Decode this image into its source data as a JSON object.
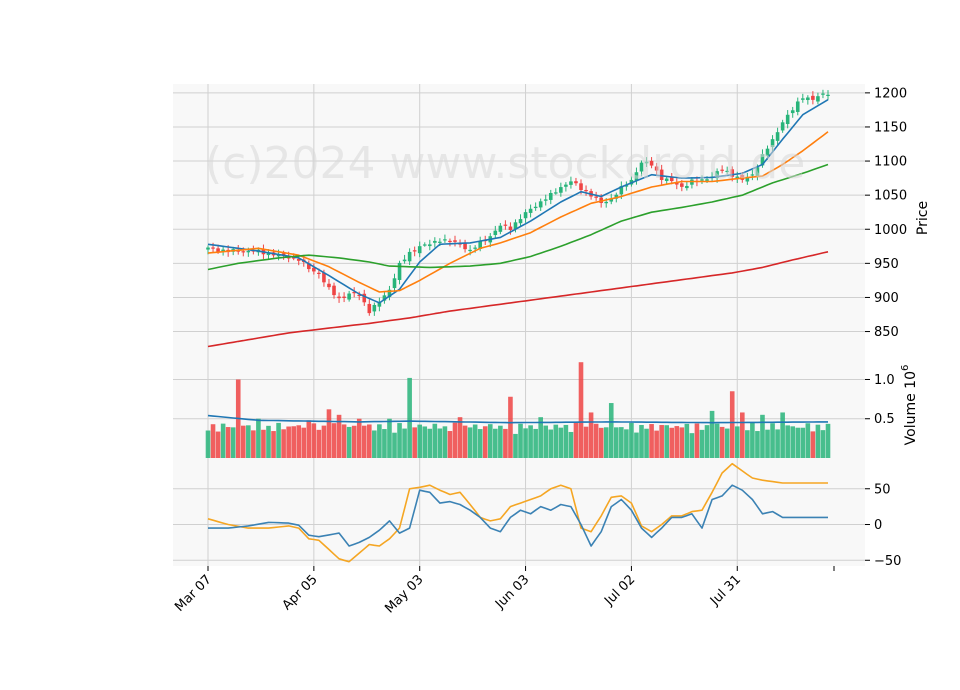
{
  "watermark": "(c)2024 www.stockdroid.de",
  "colors": {
    "panel_bg": "#f8f8f8",
    "grid": "#d0d0d0",
    "up": "#28b47a",
    "down": "#ef4444",
    "ma_short": "#1f77b4",
    "ma_mid": "#ff7f0e",
    "ma_long": "#2ca02c",
    "ma_200": "#d62728",
    "vol_ma": "#1f77b4",
    "osc_a": "#3b82b4",
    "osc_b": "#f5a623"
  },
  "chart_data": {
    "type": "candlestick",
    "x_ticks": [
      "Mar 07",
      "Apr 05",
      "May 03",
      "Jun 03",
      "Jul 02",
      "Jul 31"
    ],
    "price_panel": {
      "ylabel": "Price",
      "y_ticks": [
        850,
        900,
        950,
        1000,
        1050,
        1100,
        1150,
        1200
      ],
      "ylim": [
        820,
        1213
      ],
      "close_anchors": [
        [
          0,
          972
        ],
        [
          4,
          968
        ],
        [
          9,
          968
        ],
        [
          14,
          962
        ],
        [
          18,
          956
        ],
        [
          20,
          942
        ],
        [
          22,
          935
        ],
        [
          24,
          912
        ],
        [
          26,
          898
        ],
        [
          28,
          905
        ],
        [
          30,
          904
        ],
        [
          32,
          880
        ],
        [
          34,
          893
        ],
        [
          36,
          912
        ],
        [
          38,
          948
        ],
        [
          40,
          965
        ],
        [
          42,
          975
        ],
        [
          44,
          978
        ],
        [
          46,
          985
        ],
        [
          48,
          982
        ],
        [
          50,
          978
        ],
        [
          52,
          968
        ],
        [
          54,
          980
        ],
        [
          56,
          990
        ],
        [
          58,
          1005
        ],
        [
          60,
          1002
        ],
        [
          62,
          1016
        ],
        [
          64,
          1030
        ],
        [
          66,
          1040
        ],
        [
          68,
          1050
        ],
        [
          70,
          1062
        ],
        [
          72,
          1070
        ],
        [
          74,
          1060
        ],
        [
          76,
          1050
        ],
        [
          78,
          1038
        ],
        [
          80,
          1045
        ],
        [
          82,
          1060
        ],
        [
          84,
          1072
        ],
        [
          86,
          1098
        ],
        [
          88,
          1095
        ],
        [
          90,
          1075
        ],
        [
          92,
          1070
        ],
        [
          94,
          1062
        ],
        [
          96,
          1070
        ],
        [
          98,
          1072
        ],
        [
          100,
          1078
        ],
        [
          102,
          1088
        ],
        [
          104,
          1080
        ],
        [
          106,
          1072
        ],
        [
          108,
          1080
        ],
        [
          110,
          1108
        ],
        [
          112,
          1130
        ],
        [
          114,
          1158
        ],
        [
          116,
          1175
        ],
        [
          118,
          1195
        ],
        [
          120,
          1190
        ],
        [
          122,
          1198
        ],
        [
          123,
          1200
        ]
      ],
      "ma_series": [
        {
          "name": "",
          "color": "ma_short",
          "anchors": [
            [
              0,
              978
            ],
            [
              10,
              968
            ],
            [
              18,
              958
            ],
            [
              24,
              932
            ],
            [
              30,
              905
            ],
            [
              34,
              892
            ],
            [
              38,
              912
            ],
            [
              42,
              952
            ],
            [
              46,
              978
            ],
            [
              52,
              980
            ],
            [
              58,
              988
            ],
            [
              64,
              1012
            ],
            [
              70,
              1040
            ],
            [
              74,
              1055
            ],
            [
              78,
              1048
            ],
            [
              82,
              1062
            ],
            [
              88,
              1080
            ],
            [
              94,
              1075
            ],
            [
              100,
              1076
            ],
            [
              106,
              1082
            ],
            [
              110,
              1095
            ],
            [
              114,
              1132
            ],
            [
              118,
              1168
            ],
            [
              123,
              1190
            ]
          ]
        },
        {
          "name": "",
          "color": "ma_mid",
          "anchors": [
            [
              0,
              965
            ],
            [
              10,
              972
            ],
            [
              18,
              962
            ],
            [
              24,
              945
            ],
            [
              30,
              922
            ],
            [
              34,
              908
            ],
            [
              38,
              910
            ],
            [
              42,
              925
            ],
            [
              48,
              950
            ],
            [
              54,
              972
            ],
            [
              58,
              980
            ],
            [
              64,
              995
            ],
            [
              70,
              1018
            ],
            [
              76,
              1038
            ],
            [
              82,
              1048
            ],
            [
              88,
              1062
            ],
            [
              94,
              1070
            ],
            [
              100,
              1070
            ],
            [
              106,
              1075
            ],
            [
              110,
              1078
            ],
            [
              114,
              1095
            ],
            [
              118,
              1115
            ],
            [
              123,
              1143
            ]
          ]
        },
        {
          "name": "",
          "color": "ma_long",
          "anchors": [
            [
              0,
              941
            ],
            [
              6,
              950
            ],
            [
              14,
              958
            ],
            [
              20,
              962
            ],
            [
              26,
              958
            ],
            [
              32,
              952
            ],
            [
              36,
              946
            ],
            [
              44,
              944
            ],
            [
              52,
              946
            ],
            [
              58,
              950
            ],
            [
              64,
              960
            ],
            [
              70,
              975
            ],
            [
              76,
              992
            ],
            [
              82,
              1012
            ],
            [
              88,
              1025
            ],
            [
              94,
              1032
            ],
            [
              100,
              1040
            ],
            [
              106,
              1050
            ],
            [
              112,
              1068
            ],
            [
              118,
              1082
            ],
            [
              123,
              1095
            ]
          ]
        },
        {
          "name": "",
          "color": "ma_200",
          "anchors": [
            [
              0,
              828
            ],
            [
              8,
              838
            ],
            [
              16,
              848
            ],
            [
              24,
              855
            ],
            [
              32,
              862
            ],
            [
              40,
              870
            ],
            [
              48,
              880
            ],
            [
              56,
              888
            ],
            [
              64,
              896
            ],
            [
              72,
              904
            ],
            [
              80,
              912
            ],
            [
              88,
              920
            ],
            [
              96,
              928
            ],
            [
              104,
              936
            ],
            [
              110,
              944
            ],
            [
              116,
              955
            ],
            [
              123,
              967
            ]
          ]
        }
      ]
    },
    "volume_panel": {
      "ylabel": "Volume  10^6",
      "y_ticks": [
        0.5,
        1.0
      ],
      "ylim": [
        0,
        1.35
      ],
      "volume_ma": [
        [
          0,
          0.54
        ],
        [
          10,
          0.48
        ],
        [
          30,
          0.46
        ],
        [
          40,
          0.47
        ],
        [
          60,
          0.45
        ],
        [
          80,
          0.46
        ],
        [
          100,
          0.45
        ],
        [
          123,
          0.46
        ]
      ],
      "spikes": [
        [
          6,
          1.0
        ],
        [
          10,
          0.5
        ],
        [
          20,
          0.48
        ],
        [
          24,
          0.62
        ],
        [
          26,
          0.55
        ],
        [
          30,
          0.5
        ],
        [
          36,
          0.5
        ],
        [
          40,
          1.02
        ],
        [
          50,
          0.52
        ],
        [
          60,
          0.78
        ],
        [
          66,
          0.52
        ],
        [
          74,
          1.22
        ],
        [
          76,
          0.58
        ],
        [
          80,
          0.7
        ],
        [
          90,
          0.42
        ],
        [
          100,
          0.6
        ],
        [
          104,
          0.85
        ],
        [
          106,
          0.58
        ],
        [
          110,
          0.55
        ],
        [
          114,
          0.58
        ]
      ]
    },
    "oscillator_panel": {
      "y_ticks": [
        -50,
        0,
        50
      ],
      "ylim": [
        -58,
        93
      ],
      "series_a": [
        [
          0,
          -5
        ],
        [
          4,
          -5
        ],
        [
          8,
          -2
        ],
        [
          12,
          3
        ],
        [
          16,
          2
        ],
        [
          18,
          -1
        ],
        [
          20,
          -15
        ],
        [
          22,
          -17
        ],
        [
          26,
          -12
        ],
        [
          28,
          -30
        ],
        [
          30,
          -25
        ],
        [
          32,
          -18
        ],
        [
          34,
          -8
        ],
        [
          36,
          5
        ],
        [
          38,
          -12
        ],
        [
          40,
          -5
        ],
        [
          42,
          48
        ],
        [
          44,
          45
        ],
        [
          46,
          30
        ],
        [
          48,
          32
        ],
        [
          50,
          28
        ],
        [
          52,
          20
        ],
        [
          54,
          10
        ],
        [
          56,
          -5
        ],
        [
          58,
          -10
        ],
        [
          60,
          10
        ],
        [
          62,
          20
        ],
        [
          64,
          15
        ],
        [
          66,
          25
        ],
        [
          68,
          20
        ],
        [
          70,
          28
        ],
        [
          72,
          25
        ],
        [
          74,
          0
        ],
        [
          76,
          -30
        ],
        [
          78,
          -10
        ],
        [
          80,
          25
        ],
        [
          82,
          35
        ],
        [
          84,
          20
        ],
        [
          86,
          -5
        ],
        [
          88,
          -18
        ],
        [
          90,
          -5
        ],
        [
          92,
          10
        ],
        [
          94,
          10
        ],
        [
          96,
          15
        ],
        [
          98,
          -5
        ],
        [
          100,
          35
        ],
        [
          102,
          40
        ],
        [
          104,
          55
        ],
        [
          106,
          48
        ],
        [
          108,
          35
        ],
        [
          110,
          15
        ],
        [
          112,
          18
        ],
        [
          114,
          10
        ]
      ],
      "series_b": [
        [
          0,
          8
        ],
        [
          4,
          0
        ],
        [
          8,
          -5
        ],
        [
          12,
          -5
        ],
        [
          16,
          -2
        ],
        [
          18,
          -5
        ],
        [
          20,
          -20
        ],
        [
          22,
          -22
        ],
        [
          26,
          -48
        ],
        [
          28,
          -52
        ],
        [
          30,
          -40
        ],
        [
          32,
          -28
        ],
        [
          34,
          -30
        ],
        [
          36,
          -20
        ],
        [
          38,
          -5
        ],
        [
          40,
          50
        ],
        [
          42,
          52
        ],
        [
          44,
          55
        ],
        [
          46,
          48
        ],
        [
          48,
          42
        ],
        [
          50,
          45
        ],
        [
          52,
          28
        ],
        [
          54,
          10
        ],
        [
          56,
          5
        ],
        [
          58,
          8
        ],
        [
          60,
          25
        ],
        [
          62,
          30
        ],
        [
          64,
          35
        ],
        [
          66,
          40
        ],
        [
          68,
          50
        ],
        [
          70,
          55
        ],
        [
          72,
          50
        ],
        [
          74,
          -5
        ],
        [
          76,
          -10
        ],
        [
          78,
          12
        ],
        [
          80,
          38
        ],
        [
          82,
          40
        ],
        [
          84,
          30
        ],
        [
          86,
          -2
        ],
        [
          88,
          -10
        ],
        [
          90,
          0
        ],
        [
          92,
          12
        ],
        [
          94,
          12
        ],
        [
          96,
          18
        ],
        [
          98,
          20
        ],
        [
          100,
          45
        ],
        [
          102,
          72
        ],
        [
          104,
          85
        ],
        [
          106,
          75
        ],
        [
          108,
          65
        ],
        [
          110,
          62
        ],
        [
          112,
          60
        ],
        [
          114,
          58
        ]
      ]
    }
  }
}
